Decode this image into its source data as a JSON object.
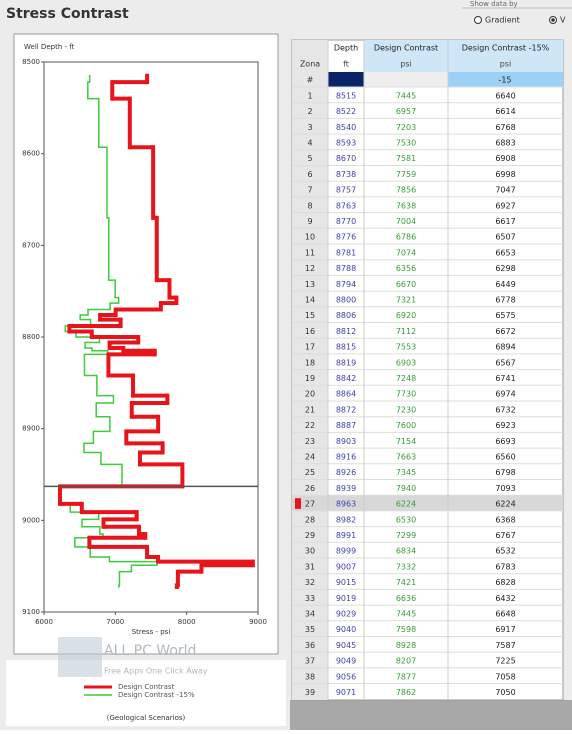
{
  "app": {
    "title": "Stress Contrast",
    "show_by": "Show data by",
    "options": [
      "Gradient",
      "V"
    ]
  },
  "chart": {
    "y_label": "Well Depth - ft",
    "x_label": "Stress - psi",
    "ylim": [
      8500,
      9100
    ],
    "yticks": [
      8500,
      8600,
      8700,
      8800,
      8900,
      9000,
      9100
    ],
    "xlim": [
      6000,
      9000
    ],
    "xticks": [
      6000,
      7000,
      8000,
      9000
    ],
    "series": [
      {
        "name": "Design Contrast",
        "color": "#e8141b"
      },
      {
        "name": "Design Contrast -15%",
        "color": "#3ccc3c"
      }
    ],
    "footer": "(Geological Scenarios)"
  },
  "table": {
    "zone_header": "Zona",
    "columns": [
      {
        "title": "Depth",
        "unit": "ft"
      },
      {
        "title": "Design Contrast",
        "unit": "psi"
      },
      {
        "title": "Design Contrast -15%",
        "unit": "psi"
      }
    ],
    "param_row": {
      "label": "#",
      "value": -15
    },
    "rows": [
      {
        "cells": [
          1,
          8515,
          7445,
          6640
        ]
      },
      {
        "cells": [
          2,
          8522,
          6957,
          6614
        ]
      },
      {
        "cells": [
          3,
          8540,
          7203,
          6768
        ]
      },
      {
        "cells": [
          4,
          8593,
          7530,
          6883
        ]
      },
      {
        "cells": [
          5,
          8670,
          7581,
          6908
        ]
      },
      {
        "cells": [
          6,
          8738,
          7759,
          6998
        ]
      },
      {
        "cells": [
          7,
          8757,
          7856,
          7047
        ]
      },
      {
        "cells": [
          8,
          8763,
          7638,
          6927
        ]
      },
      {
        "cells": [
          9,
          8770,
          7004,
          6617
        ]
      },
      {
        "cells": [
          10,
          8776,
          6786,
          6507
        ]
      },
      {
        "cells": [
          11,
          8781,
          7074,
          6653
        ]
      },
      {
        "cells": [
          12,
          8788,
          6356,
          6298
        ]
      },
      {
        "cells": [
          13,
          8794,
          6670,
          6449
        ]
      },
      {
        "cells": [
          14,
          8800,
          7321,
          6778
        ]
      },
      {
        "cells": [
          15,
          8806,
          6920,
          6575
        ]
      },
      {
        "cells": [
          16,
          8812,
          7112,
          6672
        ]
      },
      {
        "cells": [
          17,
          8815,
          7553,
          6894
        ]
      },
      {
        "cells": [
          18,
          8819,
          6903,
          6567
        ]
      },
      {
        "cells": [
          19,
          8842,
          7248,
          6741
        ]
      },
      {
        "cells": [
          20,
          8864,
          7730,
          6974
        ]
      },
      {
        "cells": [
          21,
          8872,
          7230,
          6732
        ]
      },
      {
        "cells": [
          22,
          8887,
          7600,
          6923
        ]
      },
      {
        "cells": [
          23,
          8903,
          7154,
          6693
        ]
      },
      {
        "cells": [
          24,
          8916,
          7663,
          6560
        ]
      },
      {
        "cells": [
          25,
          8926,
          7345,
          6798
        ]
      },
      {
        "cells": [
          26,
          8939,
          7940,
          7093
        ]
      },
      {
        "cells": [
          27,
          8963,
          6224,
          6224
        ],
        "selected": true
      },
      {
        "cells": [
          28,
          8982,
          6530,
          6368
        ]
      },
      {
        "cells": [
          29,
          8991,
          7299,
          6767
        ]
      },
      {
        "cells": [
          30,
          8999,
          6834,
          6532
        ]
      },
      {
        "cells": [
          31,
          9007,
          7332,
          6783
        ]
      },
      {
        "cells": [
          32,
          9015,
          7421,
          6828
        ]
      },
      {
        "cells": [
          33,
          9019,
          6636,
          6432
        ]
      },
      {
        "cells": [
          34,
          9029,
          7445,
          6648
        ]
      },
      {
        "cells": [
          35,
          9040,
          7598,
          6917
        ]
      },
      {
        "cells": [
          36,
          9045,
          8928,
          7587
        ]
      },
      {
        "cells": [
          37,
          9049,
          8207,
          7225
        ]
      },
      {
        "cells": [
          38,
          9056,
          7877,
          7058
        ]
      },
      {
        "cells": [
          39,
          9071,
          7862,
          7050
        ]
      }
    ]
  },
  "watermark": {
    "name": "ALL PC World",
    "tagline": "Free Apps One Click Away"
  }
}
